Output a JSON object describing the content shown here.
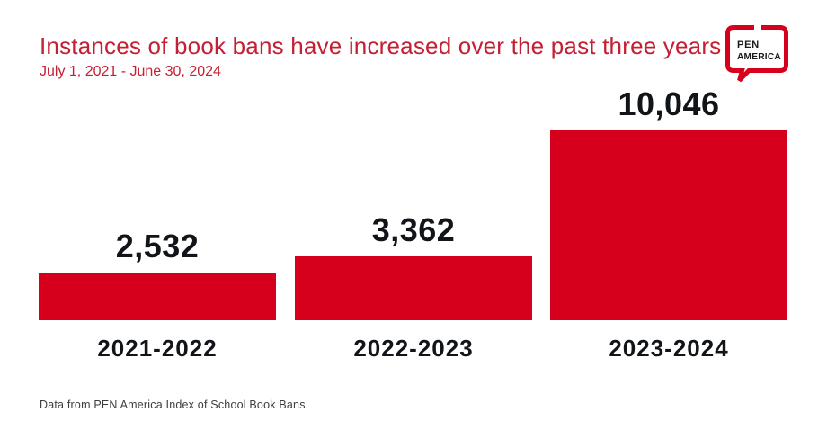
{
  "page": {
    "background": "#ffffff"
  },
  "header": {
    "title": "Instances of book bans have increased over the past three years",
    "subtitle": "July 1, 2021 - June 30, 2024"
  },
  "logo": {
    "line1": "PEN",
    "line2": "AMERICA"
  },
  "colors": {
    "bar_red": "#D6001C",
    "title_red": "#C41F33",
    "label_black": "#111418",
    "footer_gray": "#3D3D3D",
    "background": "#ffffff"
  },
  "chart_data": {
    "type": "bar",
    "title": "Instances of book bans have increased over the past three years",
    "subtitle": "July 1, 2021 - June 30, 2024",
    "categories": [
      "2021-2022",
      "2022-2023",
      "2023-2024"
    ],
    "values": [
      2532,
      3362,
      10046
    ],
    "display_values": [
      "2,532",
      "3,362",
      "10,046"
    ],
    "bar_color": "#D6001C",
    "xlabel": "",
    "ylabel": "",
    "ylim": [
      0,
      10046
    ],
    "grid": false,
    "legend": false,
    "value_labels_position": "above-bar",
    "category_labels_position": "below-bar"
  },
  "footer": {
    "note": "Data from PEN America Index of School Book Bans."
  }
}
